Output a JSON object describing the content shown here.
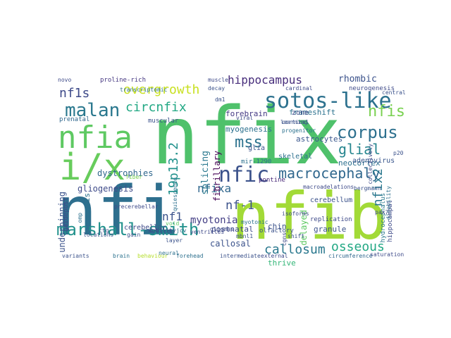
{
  "cloud": {
    "words": [
      {
        "text": "nfix",
        "color": "#4fc16b"
      },
      {
        "text": "nfi",
        "color": "#2e6f8e"
      },
      {
        "text": "nfib",
        "color": "#a2da37"
      },
      {
        "text": "nfia",
        "color": "#5ec962"
      },
      {
        "text": "i/x",
        "color": "#67cc5c"
      },
      {
        "text": "malan",
        "color": "#2a788e"
      },
      {
        "text": "sotos-like",
        "color": "#2c718e"
      },
      {
        "text": "marshall-smith",
        "color": "#21918c"
      },
      {
        "text": "nfic",
        "color": "#3b528b"
      },
      {
        "text": "macrocephaly",
        "color": "#31688e"
      },
      {
        "text": "overgrowth",
        "color": "#c8e020"
      },
      {
        "text": "circnfix",
        "color": "#22a884"
      },
      {
        "text": "corpus",
        "color": "#2d708e"
      },
      {
        "text": "glial",
        "color": "#25858e"
      },
      {
        "text": "nfis",
        "color": "#7ad151"
      },
      {
        "text": "mss",
        "color": "#2c728e"
      },
      {
        "text": "callosum",
        "color": "#2a788e"
      },
      {
        "text": "osseous",
        "color": "#22a884"
      },
      {
        "text": "nfix2",
        "color": "#2a788e"
      },
      {
        "text": "nf1s",
        "color": "#3e4a89"
      },
      {
        "text": "19p13.2",
        "color": "#21918c"
      },
      {
        "text": "nfixa",
        "color": "#31688e"
      },
      {
        "text": "nf-1",
        "color": "#3b528b"
      },
      {
        "text": "hippocampus",
        "color": "#472d7b"
      },
      {
        "text": "nf1",
        "color": "#3b528b"
      },
      {
        "text": "myotonia",
        "color": "#433e85"
      },
      {
        "text": "splicing",
        "color": "#2a788e"
      },
      {
        "text": "fibrillary",
        "color": "#440154"
      },
      {
        "text": "gliogenesis",
        "color": "#3e4a89"
      },
      {
        "text": "dystrophies",
        "color": "#31688e"
      },
      {
        "text": "rhombic",
        "color": "#3b528b"
      },
      {
        "text": "forebrain",
        "color": "#443983"
      },
      {
        "text": "frameshift",
        "color": "#2c728e"
      },
      {
        "text": "myogenesis",
        "color": "#2c718e"
      },
      {
        "text": "neocortex",
        "color": "#2d708e"
      },
      {
        "text": "astrocytes",
        "color": "#39568c"
      },
      {
        "text": "postnatal",
        "color": "#3e4a89"
      },
      {
        "text": "callosal",
        "color": "#3b528b"
      },
      {
        "text": "delayed",
        "color": "#5ec962"
      },
      {
        "text": "granule",
        "color": "#3b528b"
      },
      {
        "text": "thrive",
        "color": "#35b779"
      },
      {
        "text": "cerebellar",
        "color": "#3e4a89"
      },
      {
        "text": "cerebellum",
        "color": "#3b528b"
      },
      {
        "text": "agenesis",
        "color": "#2c728e"
      },
      {
        "text": "underpinning",
        "color": "#3b528b"
      },
      {
        "text": "glia",
        "color": "#3b528b"
      },
      {
        "text": "skeletal",
        "color": "#2d708e"
      },
      {
        "text": "adenovirus",
        "color": "#39568c"
      },
      {
        "text": "hydrocephalus",
        "color": "#2a788e"
      },
      {
        "text": "zone",
        "color": "#3e4a89"
      },
      {
        "text": "chin",
        "color": "#3b528b"
      },
      {
        "text": "pontine",
        "color": "#482878"
      },
      {
        "text": "mir-1290",
        "color": "#2c718e"
      },
      {
        "text": "neurogenesis",
        "color": "#3e4a89"
      },
      {
        "text": "prenatal",
        "color": "#31688e"
      },
      {
        "text": "muscular",
        "color": "#3b528b"
      },
      {
        "text": "replication",
        "color": "#3e4a89"
      },
      {
        "text": "proline-rich",
        "color": "#453781"
      },
      {
        "text": "guidepost",
        "color": "#3e4a89"
      },
      {
        "text": "intermediate",
        "color": "#3b528b"
      },
      {
        "text": "forehead",
        "color": "#2d708e"
      },
      {
        "text": "external",
        "color": "#3e4a89"
      },
      {
        "text": "circumference",
        "color": "#31688e"
      },
      {
        "text": "saturation",
        "color": "#3e4a89"
      },
      {
        "text": "variants",
        "color": "#3b528b"
      },
      {
        "text": "brain",
        "color": "#2c728e"
      },
      {
        "text": "behaviour",
        "color": "#b5de2b"
      },
      {
        "text": "neural",
        "color": "#2d708e"
      },
      {
        "text": "mobility",
        "color": "#433e85"
      },
      {
        "text": "gain",
        "color": "#3b528b"
      },
      {
        "text": "void",
        "color": "#5ec962"
      },
      {
        "text": "ventricles",
        "color": "#3e4a89"
      },
      {
        "text": "mbnl1",
        "color": "#3b528b"
      },
      {
        "text": "shift",
        "color": "#3b528b"
      },
      {
        "text": "myotonic",
        "color": "#2c718e"
      },
      {
        "text": "olfactory",
        "color": "#3b528b"
      },
      {
        "text": "isoforms",
        "color": "#3e4a89"
      },
      {
        "text": "cortical",
        "color": "#3b528b"
      },
      {
        "text": "muscle",
        "color": "#3e4a89"
      },
      {
        "text": "decay",
        "color": "#3b528b"
      },
      {
        "text": "cardinal",
        "color": "#3e4a89"
      },
      {
        "text": "central",
        "color": "#3b528b"
      },
      {
        "text": "novo",
        "color": "#3e4a89"
      },
      {
        "text": "transcriptomic",
        "color": "#2c718e"
      },
      {
        "text": "layer",
        "color": "#3b528b"
      },
      {
        "text": "ctg",
        "color": "#3e4a89"
      },
      {
        "text": "jcv",
        "color": "#2d708e"
      },
      {
        "text": "gliomas",
        "color": "#3e4a89"
      },
      {
        "text": "learning",
        "color": "#3b528b"
      },
      {
        "text": "progenitor",
        "color": "#2c718e"
      },
      {
        "text": "viral",
        "color": "#3e4a89"
      },
      {
        "text": "fiber",
        "color": "#7ad151"
      },
      {
        "text": "omp",
        "color": "#2d708e"
      },
      {
        "text": "precerebellar",
        "color": "#3e4a89"
      },
      {
        "text": "bergmann",
        "color": "#3b528b"
      },
      {
        "text": "macroadelations",
        "color": "#3e4a89"
      },
      {
        "text": "pax7",
        "color": "#3e4a89"
      },
      {
        "text": "p20",
        "color": "#3b528b"
      },
      {
        "text": "cgns",
        "color": "#3e4a89"
      },
      {
        "text": "disability",
        "color": "#2d708e"
      },
      {
        "text": "collectively",
        "color": "#3e4a89"
      },
      {
        "text": "dm1",
        "color": "#3b528b"
      },
      {
        "text": "quiescence",
        "color": "#2c718e"
      },
      {
        "text": "hippocampal",
        "color": "#3e4a89"
      },
      {
        "text": "locations",
        "color": "#3b528b"
      }
    ]
  }
}
